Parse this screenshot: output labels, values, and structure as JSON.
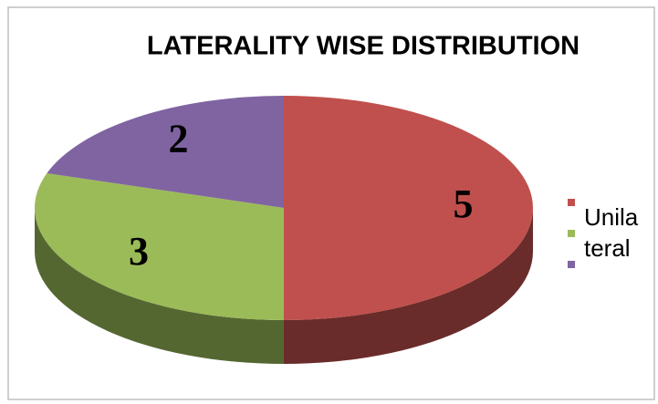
{
  "chart_data": {
    "type": "pie",
    "title": "LATERALITY WISE DISTRIBUTION",
    "categories": [
      "Unilateral",
      null,
      null
    ],
    "values": [
      5,
      3,
      2
    ],
    "colors": [
      "#c0504d",
      "#9bbb59",
      "#8064a2"
    ]
  }
}
